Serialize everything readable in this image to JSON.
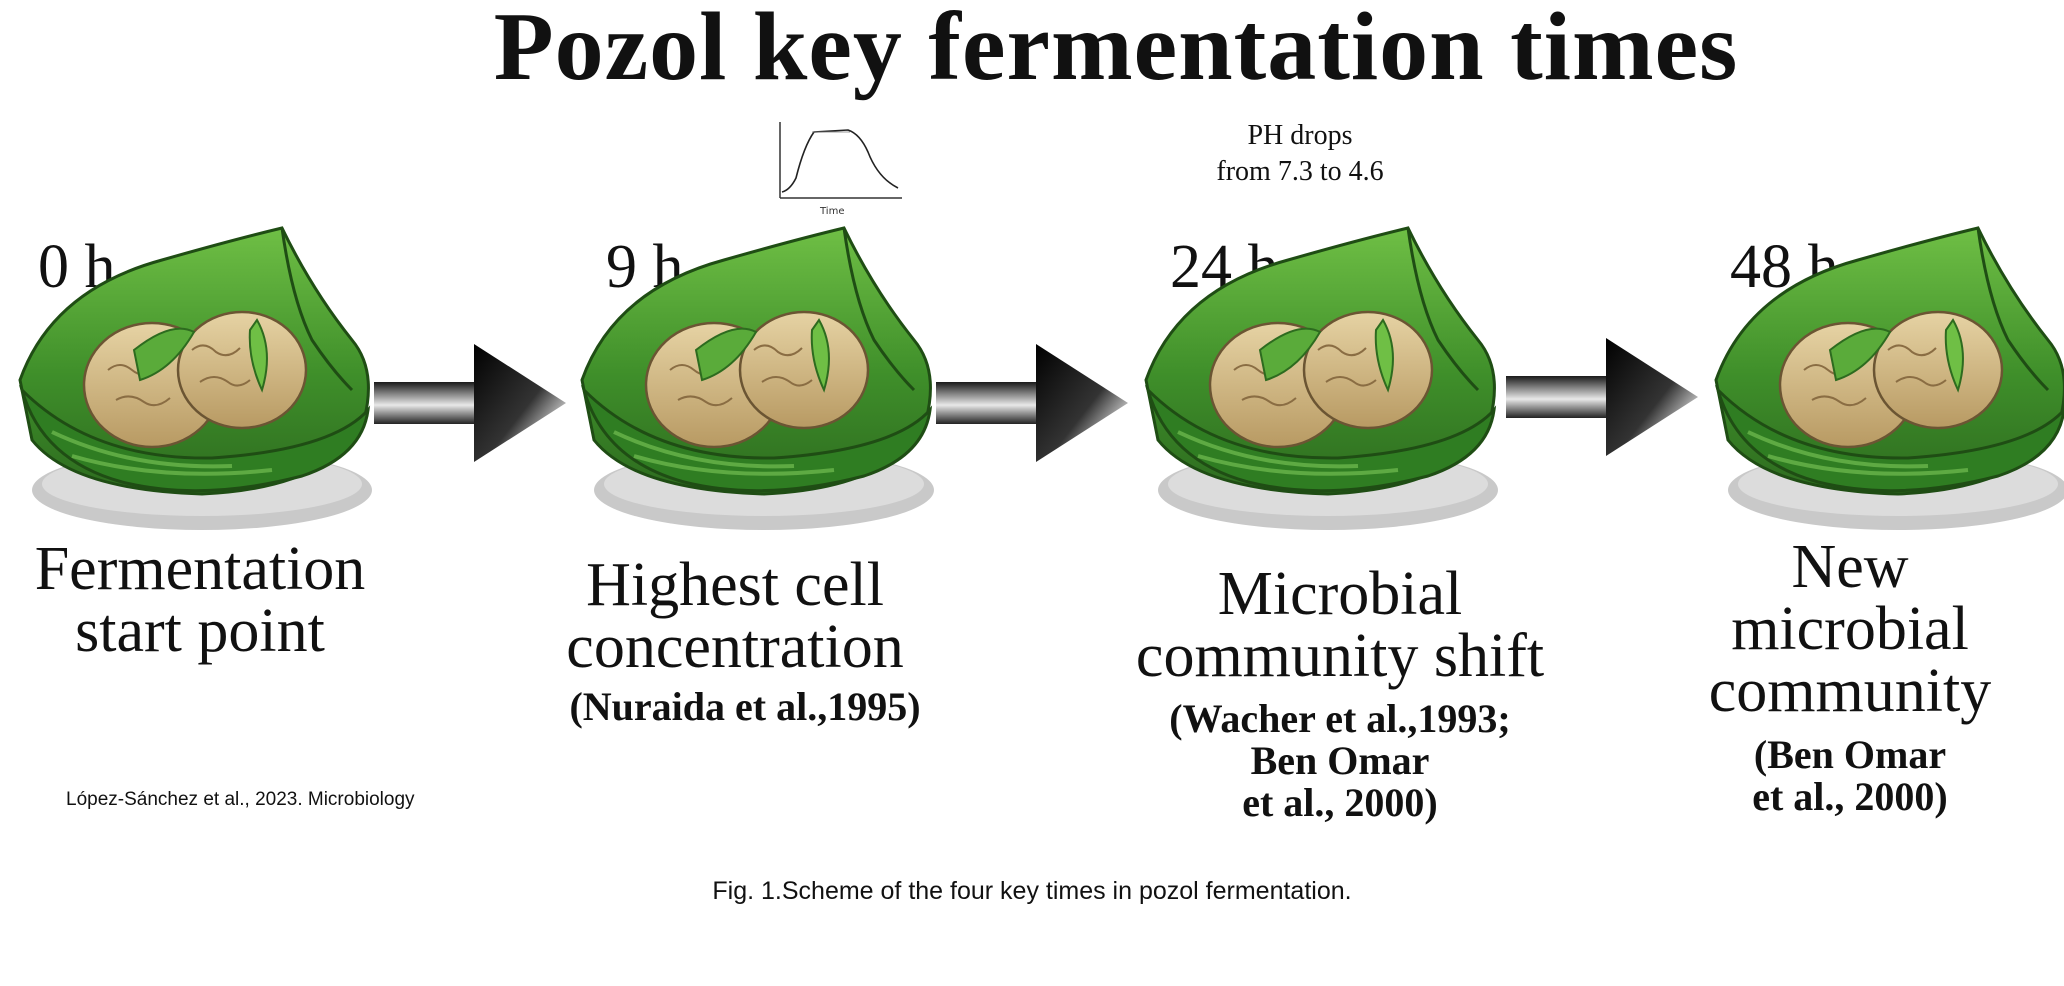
{
  "title": "Pozol key fermentation times",
  "stages": [
    {
      "time": "0 h",
      "label_lines": [
        "Fermentation",
        "start point"
      ],
      "citation_lines": []
    },
    {
      "time": "9 h",
      "label_lines": [
        "Highest cell",
        "concentration"
      ],
      "citation_lines": [
        "(Nuraida et al.,1995)"
      ]
    },
    {
      "time": "24 h",
      "label_lines": [
        "Microbial",
        "community shift"
      ],
      "citation_lines": [
        "(Wacher et al.,1993;",
        "Ben Omar",
        "et al., 2000)"
      ]
    },
    {
      "time": "48 h",
      "label_lines": [
        "New",
        "microbial",
        "community"
      ],
      "citation_lines": [
        "(Ben Omar",
        "et al., 2000)"
      ]
    }
  ],
  "ph_note": [
    "PH drops",
    "from 7.3 to 4.6"
  ],
  "growth_curve": {
    "x_label": "Time"
  },
  "credit": "López-Sánchez et al., 2023. Microbiology",
  "caption": "Fig. 1.Scheme of the four key times in pozol fermentation.",
  "colors": {
    "leaf_dark": "#2d6b1f",
    "leaf_mid": "#3f8f2a",
    "leaf_light": "#6fbf45",
    "dough": "#d8bf8a",
    "dough_shadow": "#b89a63",
    "plate": "#c9c9c9",
    "arrow_dark": "#111111"
  }
}
